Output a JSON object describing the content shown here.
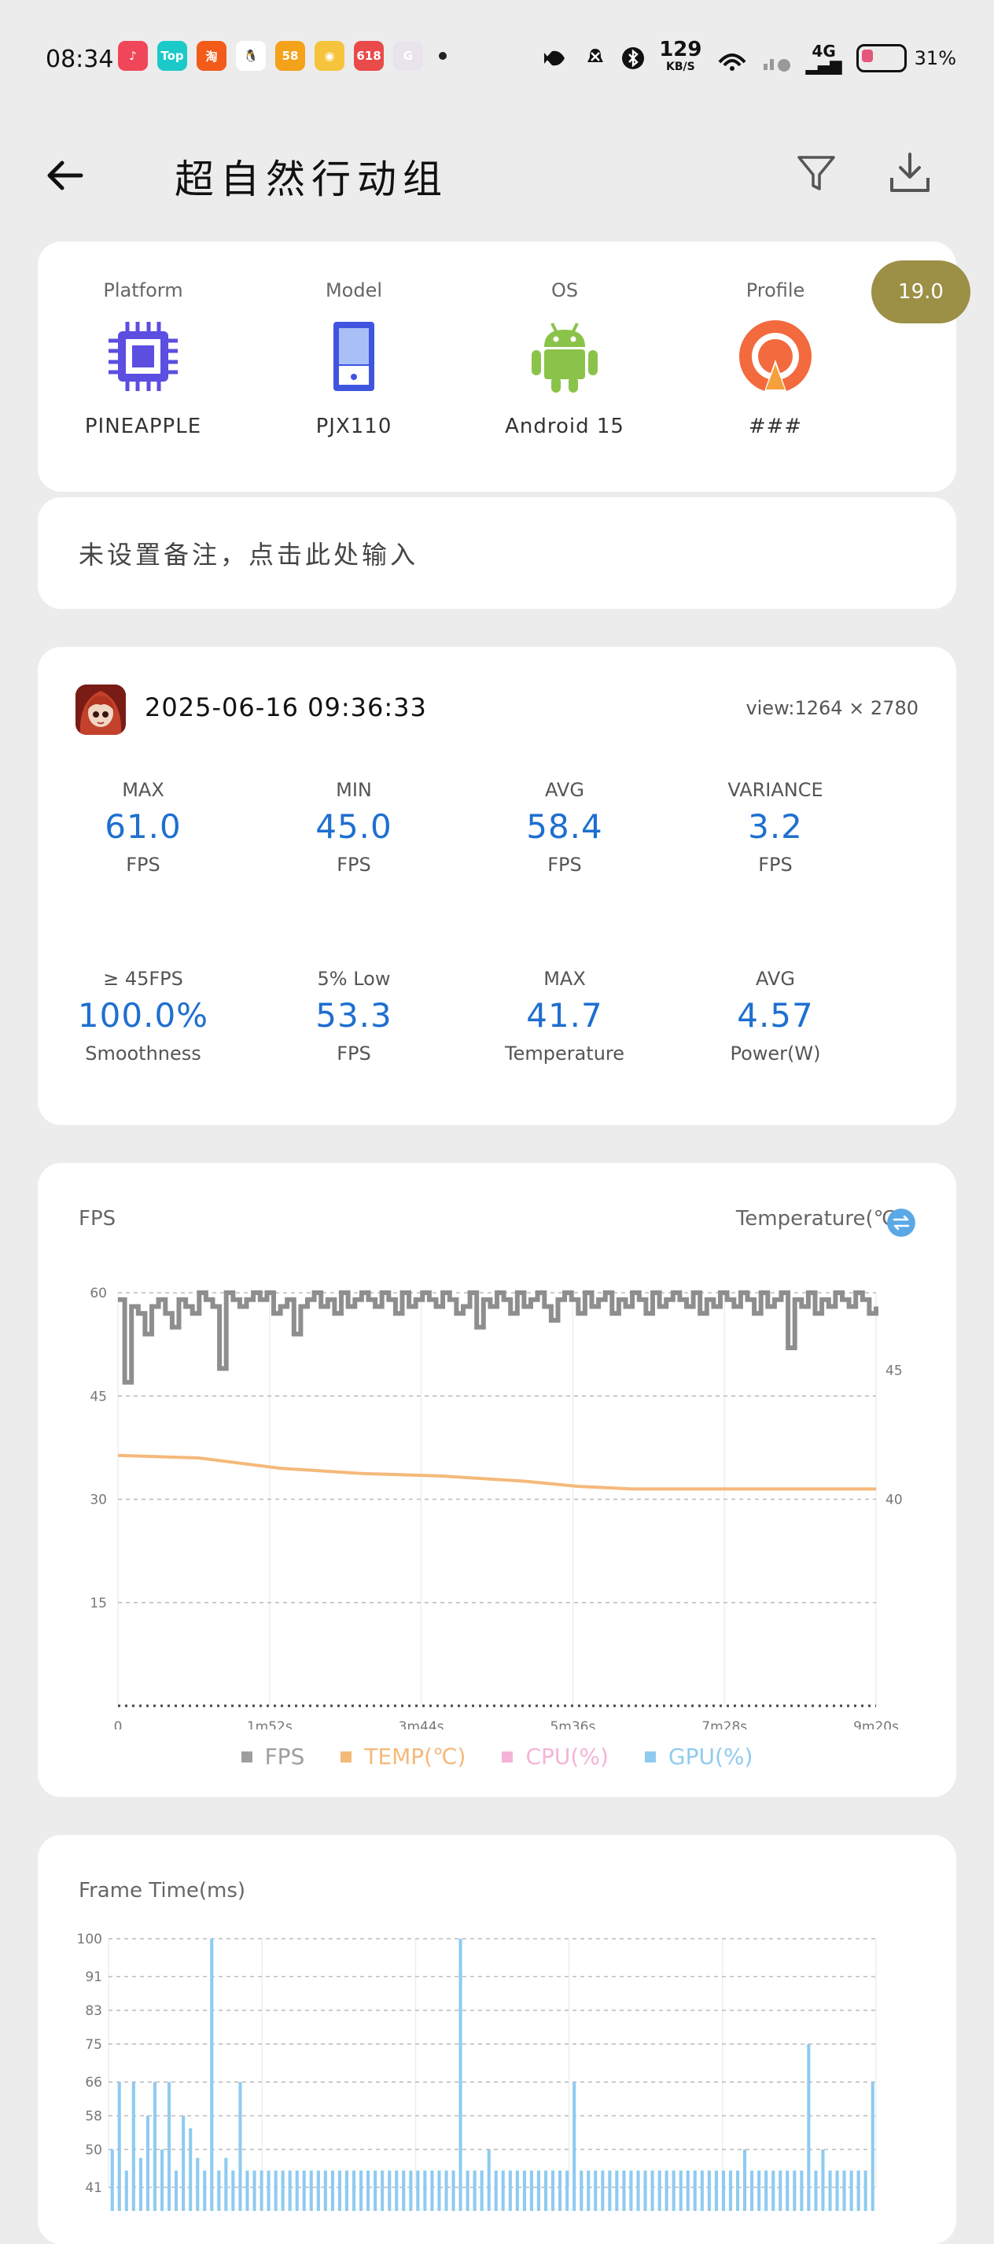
{
  "status": {
    "time": "08:34",
    "net_speed": "129",
    "net_unit": "KB/S",
    "signal": "4G",
    "battery": "31%",
    "apps": [
      {
        "icon": "music-icon",
        "color": "#f0465a",
        "label": "♪"
      },
      {
        "icon": "top-app-icon",
        "color": "#1cc9c9",
        "label": "Top"
      },
      {
        "icon": "taobao-icon",
        "color": "#f25b1a",
        "label": "淘"
      },
      {
        "icon": "qq-icon",
        "color": "#ffffff",
        "label": "🐧"
      },
      {
        "icon": "58-icon",
        "color": "#f4a21a",
        "label": "58"
      },
      {
        "icon": "weibo-icon",
        "color": "#f6c33c",
        "label": "◉"
      },
      {
        "icon": "618-icon",
        "color": "#e94a4a",
        "label": "618"
      },
      {
        "icon": "green-app-icon",
        "color": "#e9e4ec",
        "label": "G"
      }
    ]
  },
  "header": {
    "title": "超自然行动组",
    "back": "back-arrow-icon",
    "filter": "filter-icon",
    "download": "download-icon"
  },
  "device": {
    "platform_label": "Platform",
    "platform_value": "PINEAPPLE",
    "model_label": "Model",
    "model_value": "PJX110",
    "os_label": "OS",
    "os_value": "Android 15",
    "profile_label": "Profile",
    "profile_value": "###",
    "badge": "19.0"
  },
  "note": {
    "placeholder": "未设置备注，点击此处输入"
  },
  "session": {
    "datetime": "2025-06-16  09:36:33",
    "view": "view:1264 × 2780"
  },
  "stats": [
    {
      "label": "MAX",
      "value": "61.0",
      "unit": "FPS"
    },
    {
      "label": "MIN",
      "value": "45.0",
      "unit": "FPS"
    },
    {
      "label": "AVG",
      "value": "58.4",
      "unit": "FPS"
    },
    {
      "label": "VARIANCE",
      "value": "3.2",
      "unit": "FPS"
    },
    {
      "label": "≥ 45FPS",
      "value": "100.0%",
      "unit": "Smoothness"
    },
    {
      "label": "5% Low",
      "value": "53.3",
      "unit": "FPS"
    },
    {
      "label": "MAX",
      "value": "41.7",
      "unit": "Temperature"
    },
    {
      "label": "AVG",
      "value": "4.57",
      "unit": "Power(W)"
    }
  ],
  "fps_chart": {
    "title": "FPS",
    "toggle_label": "Temperature(℃)",
    "legend": [
      {
        "name": "FPS",
        "color": "#9e9e9e"
      },
      {
        "name": "TEMP(℃)",
        "color": "#f5b97a"
      },
      {
        "name": "CPU(%)",
        "color": "#f4b4d6"
      },
      {
        "name": "GPU(%)",
        "color": "#8fcbf0"
      }
    ]
  },
  "frametime_chart": {
    "title": "Frame Time(ms)"
  },
  "chart_data": [
    {
      "type": "line",
      "title": "FPS",
      "x_ticks": [
        "0",
        "1m52s",
        "3m44s",
        "5m36s",
        "7m28s",
        "9m20s"
      ],
      "x_range_s": [
        0,
        560
      ],
      "y_ticks": [
        60,
        45,
        30,
        15
      ],
      "ylim": [
        0,
        60
      ],
      "y2_ticks": [
        45,
        40
      ],
      "y2_label": "Temperature(℃)",
      "series": [
        {
          "name": "FPS",
          "x": [
            0,
            5,
            10,
            15,
            20,
            25,
            30,
            35,
            40,
            45,
            50,
            55,
            60,
            65,
            70,
            75,
            80,
            85,
            90,
            95,
            100,
            105,
            110,
            115,
            120,
            125,
            130,
            135,
            140,
            145,
            150,
            155,
            160,
            165,
            170,
            175,
            180,
            185,
            190,
            195,
            200,
            205,
            210,
            215,
            220,
            225,
            230,
            235,
            240,
            245,
            250,
            255,
            260,
            265,
            270,
            275,
            280,
            285,
            290,
            295,
            300,
            305,
            310,
            315,
            320,
            325,
            330,
            335,
            340,
            345,
            350,
            355,
            360,
            365,
            370,
            375,
            380,
            385,
            390,
            395,
            400,
            405,
            410,
            415,
            420,
            425,
            430,
            435,
            440,
            445,
            450,
            455,
            460,
            465,
            470,
            475,
            480,
            485,
            490,
            495,
            500,
            505,
            510,
            515,
            520,
            525,
            530,
            535,
            540,
            545,
            550,
            555,
            560
          ],
          "y": [
            59,
            47,
            58,
            57,
            54,
            58,
            59,
            57,
            55,
            59,
            58,
            57,
            60,
            59,
            58,
            49,
            60,
            59,
            58,
            59,
            60,
            59,
            60,
            57,
            58,
            59,
            54,
            58,
            59,
            60,
            58,
            59,
            57,
            60,
            58,
            59,
            60,
            59,
            58,
            60,
            59,
            57,
            60,
            58,
            59,
            60,
            59,
            58,
            60,
            59,
            57,
            58,
            60,
            55,
            59,
            58,
            60,
            59,
            57,
            60,
            58,
            59,
            60,
            58,
            56,
            59,
            60,
            59,
            57,
            60,
            58,
            59,
            60,
            57,
            59,
            58,
            60,
            59,
            57,
            60,
            58,
            59,
            60,
            59,
            58,
            60,
            57,
            59,
            58,
            60,
            59,
            58,
            60,
            59,
            57,
            60,
            58,
            59,
            60,
            52,
            59,
            58,
            60,
            57,
            59,
            58,
            60,
            59,
            58,
            60,
            59,
            57,
            58
          ]
        },
        {
          "name": "TEMP(℃)",
          "x": [
            0,
            60,
            120,
            180,
            240,
            300,
            340,
            380,
            420,
            480,
            560
          ],
          "y": [
            41.7,
            41.6,
            41.2,
            41.0,
            40.9,
            40.7,
            40.5,
            40.4,
            40.4,
            40.4,
            40.4
          ]
        }
      ]
    },
    {
      "type": "bar",
      "title": "Frame Time(ms)",
      "y_ticks": [
        100,
        91,
        83,
        75,
        66,
        58,
        50,
        41
      ],
      "ylim": [
        41,
        100
      ],
      "series": [
        {
          "name": "Frame Time",
          "values": [
            50,
            66,
            45,
            66,
            48,
            58,
            66,
            50,
            66,
            45,
            58,
            55,
            48,
            45,
            100,
            45,
            48,
            45,
            66,
            45,
            45,
            45,
            45,
            45,
            45,
            45,
            45,
            45,
            45,
            45,
            45,
            45,
            45,
            45,
            45,
            45,
            45,
            45,
            45,
            45,
            45,
            45,
            45,
            45,
            45,
            45,
            45,
            45,
            45,
            100,
            45,
            45,
            45,
            50,
            45,
            45,
            45,
            45,
            45,
            45,
            45,
            45,
            45,
            45,
            45,
            66,
            45,
            45,
            45,
            45,
            45,
            45,
            45,
            45,
            45,
            45,
            45,
            45,
            45,
            45,
            45,
            45,
            45,
            45,
            45,
            45,
            45,
            45,
            45,
            50,
            45,
            45,
            45,
            45,
            45,
            45,
            45,
            45,
            75,
            45,
            50,
            45,
            45,
            45,
            45,
            45,
            45,
            66
          ]
        }
      ]
    }
  ]
}
